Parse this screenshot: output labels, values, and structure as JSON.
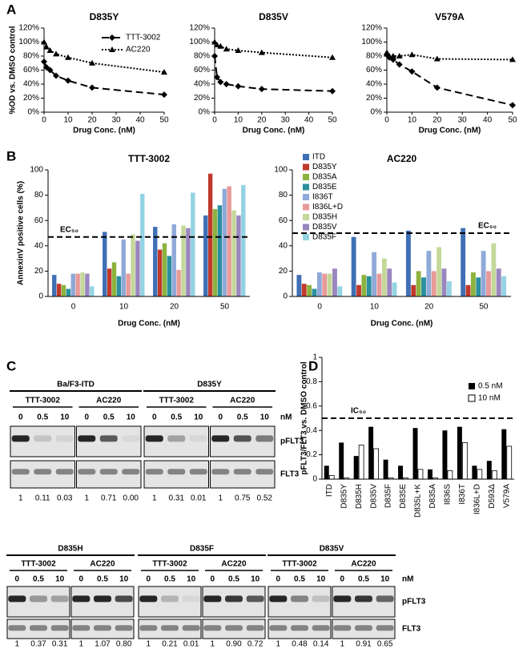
{
  "panel_labels": [
    "A",
    "B",
    "C",
    "D"
  ],
  "chart_data": [
    {
      "type": "line",
      "title": "D835Y",
      "x": [
        0,
        1,
        2.5,
        5,
        10,
        20,
        50
      ],
      "xlim": [
        0,
        50
      ],
      "xticks": [
        0,
        10,
        20,
        30,
        40,
        50
      ],
      "ylim": [
        0,
        120
      ],
      "yticks": [
        {
          "value": 0,
          "label": "0%"
        },
        {
          "value": 20,
          "label": "20%"
        },
        {
          "value": 40,
          "label": "40%"
        },
        {
          "value": 60,
          "label": "60%"
        },
        {
          "value": 80,
          "label": "80%"
        },
        {
          "value": 100,
          "label": "100%"
        },
        {
          "value": 120,
          "label": "120%"
        }
      ],
      "xlabel": "Drug Conc. (nM)",
      "ylabel": "%OD vs. DMSO control",
      "legend": "upper right",
      "series": [
        {
          "name": "TTT-3002",
          "color": "#000000",
          "line_style": "dashed",
          "marker": "diamond",
          "values": [
            72,
            64,
            60,
            52,
            45,
            35,
            25
          ]
        },
        {
          "name": "AC220",
          "color": "#000000",
          "line_style": "dotted",
          "marker": "triangle",
          "values": [
            100,
            93,
            88,
            83,
            78,
            70,
            57
          ]
        }
      ]
    },
    {
      "type": "line",
      "title": "D835V",
      "x": [
        0,
        1,
        2.5,
        5,
        10,
        20,
        50
      ],
      "xlim": [
        0,
        50
      ],
      "xticks": [
        0,
        10,
        20,
        30,
        40,
        50
      ],
      "ylim": [
        0,
        120
      ],
      "yticks": [
        {
          "value": 0,
          "label": "0%"
        },
        {
          "value": 20,
          "label": "20%"
        },
        {
          "value": 40,
          "label": "40%"
        },
        {
          "value": 60,
          "label": "60%"
        },
        {
          "value": 80,
          "label": "80%"
        },
        {
          "value": 100,
          "label": "100%"
        },
        {
          "value": 120,
          "label": "120%"
        }
      ],
      "xlabel": "Drug Conc. (nM)",
      "series": [
        {
          "color": "#000000",
          "line_style": "dashed",
          "marker": "diamond",
          "values": [
            80,
            50,
            43,
            40,
            37,
            33,
            30
          ]
        },
        {
          "color": "#000000",
          "line_style": "dotted",
          "marker": "triangle",
          "values": [
            100,
            96,
            94,
            90,
            88,
            85,
            78
          ]
        }
      ]
    },
    {
      "type": "line",
      "title": "V579A",
      "x": [
        0,
        1,
        2.5,
        5,
        10,
        20,
        50
      ],
      "xlim": [
        0,
        50
      ],
      "xticks": [
        0,
        10,
        20,
        30,
        40,
        50
      ],
      "ylim": [
        0,
        120
      ],
      "yticks": [
        {
          "value": 0,
          "label": "0%"
        },
        {
          "value": 20,
          "label": "20%"
        },
        {
          "value": 40,
          "label": "40%"
        },
        {
          "value": 60,
          "label": "60%"
        },
        {
          "value": 80,
          "label": "80%"
        },
        {
          "value": 100,
          "label": "100%"
        },
        {
          "value": 120,
          "label": "120%"
        }
      ],
      "xlabel": "Drug Conc. (nM)",
      "series": [
        {
          "color": "#000000",
          "line_style": "dashed",
          "marker": "diamond",
          "values": [
            82,
            78,
            75,
            68,
            58,
            35,
            10
          ]
        },
        {
          "color": "#000000",
          "line_style": "dotted",
          "marker": "triangle",
          "values": [
            85,
            80,
            80,
            80,
            82,
            76,
            75
          ]
        }
      ]
    },
    {
      "type": "bar",
      "title": "TTT-3002",
      "categories": [
        "0",
        "10",
        "20",
        "50"
      ],
      "ylim": [
        0,
        100
      ],
      "yticks": [
        0,
        20,
        40,
        60,
        80,
        100
      ],
      "xlabel": "Drug Conc. (nM)",
      "ylabel": "AnnexinV positive cells (%)",
      "legend": "right",
      "annotation": {
        "text": "EC₅₀",
        "value": 47
      },
      "series": [
        {
          "name": "ITD",
          "color": "#3f6fb5",
          "values": [
            17,
            51,
            55,
            64
          ]
        },
        {
          "name": "D835Y",
          "color": "#c0392b",
          "values": [
            10,
            22,
            37,
            97
          ]
        },
        {
          "name": "D835A",
          "color": "#8db33f",
          "values": [
            9,
            27,
            42,
            69
          ]
        },
        {
          "name": "D835E",
          "color": "#2a8f9e",
          "values": [
            6,
            16,
            32,
            72
          ]
        },
        {
          "name": "I836T",
          "color": "#8fa9d8",
          "values": [
            18,
            45,
            57,
            85
          ]
        },
        {
          "name": "I836L+D",
          "color": "#e89a98",
          "values": [
            18,
            18,
            21,
            87
          ]
        },
        {
          "name": "D835H",
          "color": "#c4d89a",
          "values": [
            19,
            49,
            56,
            68
          ]
        },
        {
          "name": "D835V",
          "color": "#9a86bf",
          "values": [
            18,
            44,
            54,
            64
          ]
        },
        {
          "name": "D835F",
          "color": "#93d3e3",
          "values": [
            8,
            81,
            82,
            88
          ]
        }
      ]
    },
    {
      "type": "bar",
      "title": "AC220",
      "categories": [
        "0",
        "10",
        "20",
        "50"
      ],
      "ylim": [
        0,
        100
      ],
      "yticks": [
        0,
        20,
        40,
        60,
        80,
        100
      ],
      "xlabel": "Drug Conc. (nM)",
      "annotation": {
        "text": "EC₅₀",
        "value": 50
      },
      "series": [
        {
          "color": "#3f6fb5",
          "values": [
            17,
            47,
            52,
            54
          ]
        },
        {
          "color": "#c0392b",
          "values": [
            10,
            9,
            9,
            9
          ]
        },
        {
          "color": "#8db33f",
          "values": [
            9,
            17,
            20,
            19
          ]
        },
        {
          "color": "#2a8f9e",
          "values": [
            6,
            16,
            15,
            15
          ]
        },
        {
          "color": "#8fa9d8",
          "values": [
            19,
            35,
            36,
            36
          ]
        },
        {
          "color": "#e89a98",
          "values": [
            18,
            18,
            20,
            20
          ]
        },
        {
          "color": "#c4d89a",
          "values": [
            18,
            30,
            39,
            42
          ]
        },
        {
          "color": "#9a86bf",
          "values": [
            22,
            22,
            22,
            22
          ]
        },
        {
          "color": "#93d3e3",
          "values": [
            8,
            11,
            12,
            16
          ]
        }
      ]
    },
    {
      "type": "bar",
      "categories": [
        "ITD",
        "D835Y",
        "D835H",
        "D835V",
        "D835F",
        "D835E",
        "D835L+K",
        "D835A",
        "I836S",
        "I836T",
        "I836L+D",
        "D593Δ",
        "V579A"
      ],
      "ylim": [
        0,
        1
      ],
      "yticks": [
        0,
        0.2,
        0.4,
        0.6,
        0.8,
        1
      ],
      "ylabel": "pFLT3/FLT3 vs. DMSO control",
      "legend": "upper right",
      "annotation": {
        "text": "IC₅₀",
        "value": 0.5
      },
      "rotate_labels": true,
      "series": [
        {
          "name": "0.5 nM",
          "color": "#000000",
          "values": [
            0.11,
            0.3,
            0.19,
            0.43,
            0.16,
            0.11,
            0.42,
            0.08,
            0.4,
            0.43,
            0.11,
            0.15,
            0.41
          ]
        },
        {
          "name": "10 nM",
          "color": "#ffffff",
          "values": [
            0.03,
            0.01,
            0.28,
            0.25,
            0.01,
            0.01,
            0.08,
            0.01,
            0.07,
            0.3,
            0.08,
            0.07,
            0.27
          ]
        }
      ]
    }
  ],
  "blots": {
    "unit": "nM",
    "rows": [
      "pFLT3",
      "FLT3"
    ],
    "lanes": [
      "0",
      "0.5",
      "10"
    ],
    "panels": [
      {
        "title": "Ba/F3-ITD",
        "drugs": [
          {
            "name": "TTT-3002",
            "quant": [
              "1",
              "0.11",
              "0.03"
            ]
          },
          {
            "name": "AC220",
            "quant": [
              "1",
              "0.71",
              "0.00"
            ]
          }
        ]
      },
      {
        "title": "D835Y",
        "drugs": [
          {
            "name": "TTT-3002",
            "quant": [
              "1",
              "0.31",
              "0.01"
            ]
          },
          {
            "name": "AC220",
            "quant": [
              "1",
              "0.75",
              "0.52"
            ]
          }
        ]
      },
      {
        "title": "D835H",
        "drugs": [
          {
            "name": "TTT-3002",
            "quant": [
              "1",
              "0.37",
              "0.31"
            ]
          },
          {
            "name": "AC220",
            "quant": [
              "1",
              "1.07",
              "0.80"
            ]
          }
        ]
      },
      {
        "title": "D835F",
        "drugs": [
          {
            "name": "TTT-3002",
            "quant": [
              "1",
              "0.21",
              "0.01"
            ]
          },
          {
            "name": "AC220",
            "quant": [
              "1",
              "0.90",
              "0.72"
            ]
          }
        ]
      },
      {
        "title": "D835V",
        "drugs": [
          {
            "name": "TTT-3002",
            "quant": [
              "1",
              "0.48",
              "0.14"
            ]
          },
          {
            "name": "AC220",
            "quant": [
              "1",
              "0.91",
              "0.65"
            ]
          }
        ]
      }
    ]
  }
}
